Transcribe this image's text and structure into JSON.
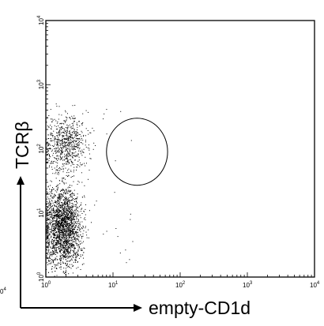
{
  "chart_data": {
    "type": "scatter",
    "xlabel": "empty-CD1d",
    "ylabel": "TCRβ",
    "x_scale": "log",
    "y_scale": "log",
    "xlim": [
      1,
      10000
    ],
    "ylim": [
      1,
      10000
    ],
    "x_ticks": [
      {
        "value": 1,
        "base": "10",
        "exp": "0"
      },
      {
        "value": 10,
        "base": "10",
        "exp": "1"
      },
      {
        "value": 100,
        "base": "10",
        "exp": "2"
      },
      {
        "value": 1000,
        "base": "10",
        "exp": "3"
      },
      {
        "value": 10000,
        "base": "10",
        "exp": "4"
      }
    ],
    "y_ticks": [
      {
        "value": 1,
        "base": "10",
        "exp": "0"
      },
      {
        "value": 10,
        "base": "10",
        "exp": "1"
      },
      {
        "value": 100,
        "base": "10",
        "exp": "2"
      },
      {
        "value": 1000,
        "base": "10",
        "exp": "3"
      },
      {
        "value": 10000,
        "base": "10",
        "exp": "4"
      }
    ],
    "corner_label": {
      "base": "0",
      "exp": "4"
    },
    "grid": false,
    "populations": [
      {
        "x_median": 1.8,
        "y_median": 6,
        "x_range": [
          1,
          4
        ],
        "y_range": [
          1.5,
          40
        ],
        "density": "high"
      },
      {
        "x_median": 2,
        "y_median": 120,
        "x_range": [
          1,
          5
        ],
        "y_range": [
          40,
          400
        ],
        "density": "medium"
      }
    ],
    "gate": {
      "shape": "circle",
      "center_x": 22,
      "center_y": 90,
      "x_range": [
        8,
        65
      ],
      "y_range": [
        27,
        300
      ]
    }
  }
}
